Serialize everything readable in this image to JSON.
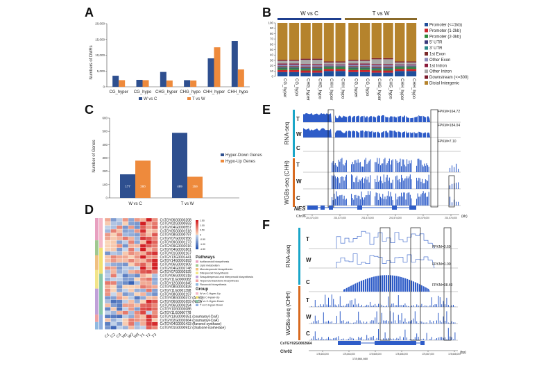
{
  "panels": {
    "a": {
      "letter": "A",
      "chart_data": {
        "type": "bar",
        "ylabel": "Numbers of DMRs",
        "ylim": [
          0,
          20000
        ],
        "yticks": [
          "0",
          "5,000",
          "10,000",
          "15,000",
          "20,000"
        ],
        "categories": [
          "CG_hyper",
          "CG_hypo",
          "CHG_hyper",
          "CHG_hypo",
          "CHH_hyper",
          "CHH_hypo"
        ],
        "series": [
          {
            "name": "W vs C",
            "color": "#2e4f8f",
            "values": [
              3500,
              2200,
              4700,
              2100,
              9000,
              14500
            ]
          },
          {
            "name": "T vs W",
            "color": "#ee8a3c",
            "values": [
              2100,
              2100,
              2000,
              2000,
              12500,
              5500
            ]
          }
        ]
      }
    },
    "b": {
      "letter": "B",
      "group_labels": [
        "W vs C",
        "T vs W"
      ],
      "group_colors": [
        "#1f3f8f",
        "#8a6a2a"
      ],
      "chart_data": {
        "type": "bar",
        "stacked": true,
        "ylim": [
          0,
          100
        ],
        "yticks": [
          "0",
          "10",
          "20",
          "30",
          "40",
          "50",
          "60",
          "70",
          "80",
          "90",
          "100"
        ],
        "categories": [
          "CG_hyper",
          "CG_hypo",
          "CHG_hyper",
          "CHG_hypo",
          "CHH_hyper",
          "CHH_hypo",
          "CG_hyper",
          "CG_hypo",
          "CHG_hyper",
          "CHG_hypo",
          "CHH_hyper",
          "CHH_hypo"
        ],
        "legend": [
          {
            "name": "Promoter (<=1kb)",
            "color": "#1f4e9a"
          },
          {
            "name": "Promoter (1-2kb)",
            "color": "#c8262c"
          },
          {
            "name": "Promoter (2-3kb)",
            "color": "#2f8a3c"
          },
          {
            "name": "5' UTR",
            "color": "#3a3a7a"
          },
          {
            "name": "3' UTR",
            "color": "#2a8a8a"
          },
          {
            "name": "1st Exon",
            "color": "#7a2a2a"
          },
          {
            "name": "Other Exon",
            "color": "#8a8ab8"
          },
          {
            "name": "1st Intron",
            "color": "#8a1a3a"
          },
          {
            "name": "Other Intron",
            "color": "#a8a8a8"
          },
          {
            "name": "Downstream (<=300)",
            "color": "#7a1a2a"
          },
          {
            "name": "Distal Intergenic",
            "color": "#b5832c"
          }
        ],
        "series": [
          {
            "name": "Promoter (<=1kb)",
            "values": [
              8,
              8,
              7,
              7,
              10,
              10,
              8,
              8,
              7,
              7,
              10,
              10
            ]
          },
          {
            "name": "Promoter (1-2kb)",
            "values": [
              4,
              4,
              4,
              4,
              4,
              4,
              4,
              4,
              4,
              4,
              4,
              4
            ]
          },
          {
            "name": "Promoter (2-3kb)",
            "values": [
              3,
              3,
              3,
              3,
              3,
              3,
              3,
              3,
              3,
              3,
              3,
              3
            ]
          },
          {
            "name": "5' UTR",
            "values": [
              1,
              1,
              1,
              1,
              1,
              1,
              1,
              1,
              1,
              1,
              1,
              1
            ]
          },
          {
            "name": "3' UTR",
            "values": [
              1,
              1,
              1,
              1,
              1,
              1,
              1,
              1,
              1,
              1,
              1,
              1
            ]
          },
          {
            "name": "1st Exon",
            "values": [
              2,
              2,
              2,
              2,
              1,
              1,
              2,
              2,
              2,
              2,
              1,
              1
            ]
          },
          {
            "name": "Other Exon",
            "values": [
              3,
              3,
              3,
              3,
              2,
              2,
              3,
              3,
              3,
              3,
              2,
              2
            ]
          },
          {
            "name": "1st Intron",
            "values": [
              2,
              2,
              2,
              2,
              1,
              1,
              2,
              2,
              2,
              2,
              1,
              1
            ]
          },
          {
            "name": "Other Intron",
            "values": [
              5,
              5,
              8,
              8,
              3,
              3,
              5,
              5,
              9,
              9,
              3,
              3
            ]
          },
          {
            "name": "Downstream (<=300)",
            "values": [
              2,
              2,
              2,
              2,
              2,
              2,
              2,
              2,
              2,
              2,
              2,
              2
            ]
          },
          {
            "name": "Distal Intergenic",
            "values": [
              69,
              69,
              67,
              67,
              72,
              72,
              69,
              69,
              66,
              66,
              72,
              72
            ]
          }
        ]
      }
    },
    "c": {
      "letter": "C",
      "chart_data": {
        "type": "bar",
        "ylabel": "Number of Genes",
        "ylim": [
          0,
          600
        ],
        "yticks": [
          "0",
          "100",
          "200",
          "300",
          "400",
          "500",
          "600"
        ],
        "categories": [
          "W vs C",
          "T vs W"
        ],
        "series": [
          {
            "name": "Hyper-Down Genes",
            "color": "#2e4f8f",
            "values": [
              177,
              489
            ],
            "labels": [
              "177",
              "489"
            ]
          },
          {
            "name": "Hypo-Up Genes",
            "color": "#ee8a3c",
            "values": [
              280,
              159
            ],
            "labels": [
              "280",
              "159"
            ]
          }
        ]
      }
    },
    "d": {
      "letter": "D",
      "genes": [
        "CsTGY06G0003208",
        "CsTGY02G0000593",
        "CsTGY04G0000557",
        "CsTGY05G0001518",
        "CsTGY08G0000797",
        "CsTGY07G0002956",
        "CsTGY09G0001273",
        "CsTGY09G0002016",
        "CsTGY04G0001861",
        "CsTGY01G0002167",
        "CsTGY13G0001441",
        "CsTGY14G0001893",
        "CsTGY06G0001909",
        "CsTGY04G0002748",
        "CsTGY07G0002925",
        "CsTGY06G0002318",
        "CsTGY11G0000082",
        "CsTGY12G0001845",
        "CsTGY08G0001826",
        "CsTGY11G0001398",
        "CsTGY08G0002197",
        "CsTGY08G0000372 (AFS1)",
        "CsTGY06G0001659 (NES)",
        "CsTGY06G0003294",
        "CsTGY10G0003086",
        "CsTGY11G0000778",
        "CsTGY13G0000351 (coumaroyl-CoA)",
        "CsTGY02G0002664 (coumaroyl-CoA)",
        "CsTGY04G0001433 (flavonol synthase)",
        "CsTGY01G0000912 (chalcone isomerase)"
      ],
      "samples": [
        "C1",
        "C2",
        "C3",
        "W1",
        "W2",
        "W3",
        "T1",
        "T2",
        "T3"
      ],
      "scale_labels": [
        "1.50",
        "1.00",
        "0.50",
        "0",
        "-0.50",
        "-1.00",
        "-1.50"
      ],
      "pathways_title": "Pathways",
      "pathways": [
        {
          "name": "Isoflavonoid biosynthesis",
          "color": "#e8a0c0"
        },
        {
          "name": "Lipid metabolism",
          "color": "#a0c890"
        },
        {
          "name": "Monoterpenoid biosynthesis",
          "color": "#f0c080"
        },
        {
          "name": "Diterpenoid biosynthesis",
          "color": "#f2e488"
        },
        {
          "name": "Sesquiterpenoid and triterpenoid biosynthesis",
          "color": "#c0a0d8"
        },
        {
          "name": "Terpenoid backbone biosynthesis",
          "color": "#f0a0a0"
        },
        {
          "name": "Flavonoid biosynthesis",
          "color": "#90b8e0"
        }
      ],
      "group_title": "Group",
      "groups": [
        {
          "name": "W vs C-Hyper-Up",
          "color": "#f4b8c8"
        },
        {
          "name": "T vs C-Hyper-Up",
          "color": "#f0e070"
        },
        {
          "name": "W vs C-Hyper-Down",
          "color": "#88c8a8"
        },
        {
          "name": "T vs C-Hyper-Down",
          "color": "#90b0e0"
        }
      ]
    },
    "e": {
      "letter": "E",
      "rnaseq_label": "RNA-seq",
      "wgbs_label": "WGBs-seq (CHH)",
      "tracks": [
        "T",
        "W",
        "C",
        "T",
        "W",
        "C"
      ],
      "fpkm": [
        "FPKM=164.72",
        "FPKM=184.04",
        "FPKM=7.10"
      ],
      "gene_name": "NES",
      "chrom": "Chr06",
      "unit": "(kb)",
      "ticks": [
        "201,571,000",
        "201,572,000",
        "201,573,000",
        "201,574,000",
        "201,575,000",
        "201,576,000"
      ]
    },
    "f": {
      "letter": "F",
      "rnaseq_label": "RNA-seq",
      "wgbs_label": "WGBs-seq (CHH)",
      "tracks": [
        "T",
        "W",
        "C",
        "T",
        "W",
        "C"
      ],
      "fpkm": [
        "FPKM=0.60",
        "FPKM=1.00",
        "FPKM=38.49"
      ],
      "gene_name": "CsTGY02G0002664",
      "chrom": "Chr02",
      "unit": "(bp)",
      "ticks": [
        "178,663,000",
        "178,664,000",
        "178,665,000",
        "178,666,000",
        "178,667,000",
        "178,668,000"
      ],
      "bottom_label": "178,664,660"
    }
  }
}
